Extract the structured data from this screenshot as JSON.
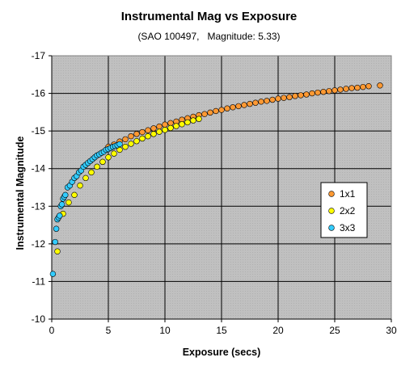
{
  "chart_data": {
    "type": "scatter",
    "title": "Instrumental Mag vs Exposure",
    "subtitle": "(SAO 100497,   Magnitude: 5.33)",
    "xlabel": "Exposure (secs)",
    "ylabel": "Instrumental Magnitude",
    "xlim": [
      0,
      30
    ],
    "ylim": [
      -10,
      -17
    ],
    "y_axis_inverted": true,
    "x_ticks": [
      "0",
      "5",
      "10",
      "15",
      "20",
      "25",
      "30"
    ],
    "y_ticks": [
      "-10",
      "-11",
      "-12",
      "-13",
      "-14",
      "-15",
      "-16",
      "-17"
    ],
    "grid": true,
    "legend_position": "right",
    "series": [
      {
        "name": "1x1",
        "color": "#ff9933",
        "x": [
          5.0,
          5.5,
          6.0,
          6.5,
          7.0,
          7.5,
          8.0,
          8.5,
          9.0,
          9.5,
          10.0,
          10.5,
          11.0,
          11.5,
          12.0,
          12.5,
          13.0,
          13.5,
          14.0,
          14.5,
          15.0,
          15.5,
          16.0,
          16.5,
          17.0,
          17.5,
          18.0,
          18.5,
          19.0,
          19.5,
          20.0,
          20.5,
          21.0,
          21.5,
          22.0,
          22.5,
          23.0,
          23.5,
          24.0,
          24.5,
          25.0,
          25.5,
          26.0,
          26.5,
          27.0,
          27.5,
          28.0,
          29.0
        ],
        "y": [
          -14.58,
          -14.64,
          -14.72,
          -14.78,
          -14.86,
          -14.92,
          -14.97,
          -15.02,
          -15.07,
          -15.12,
          -15.17,
          -15.21,
          -15.25,
          -15.3,
          -15.34,
          -15.38,
          -15.42,
          -15.45,
          -15.49,
          -15.53,
          -15.56,
          -15.6,
          -15.63,
          -15.66,
          -15.69,
          -15.72,
          -15.75,
          -15.78,
          -15.8,
          -15.83,
          -15.86,
          -15.88,
          -15.9,
          -15.93,
          -15.95,
          -15.97,
          -16.0,
          -16.02,
          -16.04,
          -16.06,
          -16.08,
          -16.1,
          -16.12,
          -16.14,
          -16.15,
          -16.17,
          -16.19,
          -16.21
        ]
      },
      {
        "name": "2x2",
        "color": "#ffff00",
        "x": [
          0.5,
          1.0,
          1.5,
          2.0,
          2.5,
          3.0,
          3.5,
          4.0,
          4.5,
          5.0,
          5.5,
          6.0,
          6.5,
          7.0,
          7.5,
          8.0,
          8.5,
          9.0,
          9.5,
          10.0,
          10.5,
          11.0,
          11.5,
          12.0,
          12.5,
          13.0
        ],
        "y": [
          -11.8,
          -12.8,
          -13.1,
          -13.3,
          -13.55,
          -13.75,
          -13.9,
          -14.05,
          -14.18,
          -14.3,
          -14.4,
          -14.5,
          -14.58,
          -14.66,
          -14.73,
          -14.8,
          -14.86,
          -14.92,
          -14.98,
          -15.03,
          -15.08,
          -15.13,
          -15.18,
          -15.23,
          -15.28,
          -15.32
        ]
      },
      {
        "name": "3x3",
        "color": "#33ccff",
        "x": [
          0.1,
          0.3,
          0.4,
          0.5,
          0.6,
          0.7,
          0.8,
          0.9,
          1.0,
          1.1,
          1.2,
          1.4,
          1.6,
          1.8,
          2.0,
          2.2,
          2.4,
          2.6,
          2.8,
          3.0,
          3.2,
          3.4,
          3.6,
          3.8,
          4.0,
          4.2,
          4.4,
          4.6,
          4.8,
          5.0,
          5.2,
          5.4,
          5.6,
          5.8,
          6.0
        ],
        "y": [
          -11.2,
          -12.05,
          -12.4,
          -12.65,
          -12.7,
          -12.75,
          -13.0,
          -13.05,
          -13.2,
          -13.25,
          -13.3,
          -13.5,
          -13.55,
          -13.65,
          -13.75,
          -13.8,
          -13.9,
          -13.95,
          -14.05,
          -14.1,
          -14.15,
          -14.2,
          -14.25,
          -14.3,
          -14.35,
          -14.38,
          -14.42,
          -14.45,
          -14.5,
          -14.52,
          -14.55,
          -14.58,
          -14.6,
          -14.62,
          -14.65
        ]
      }
    ]
  }
}
